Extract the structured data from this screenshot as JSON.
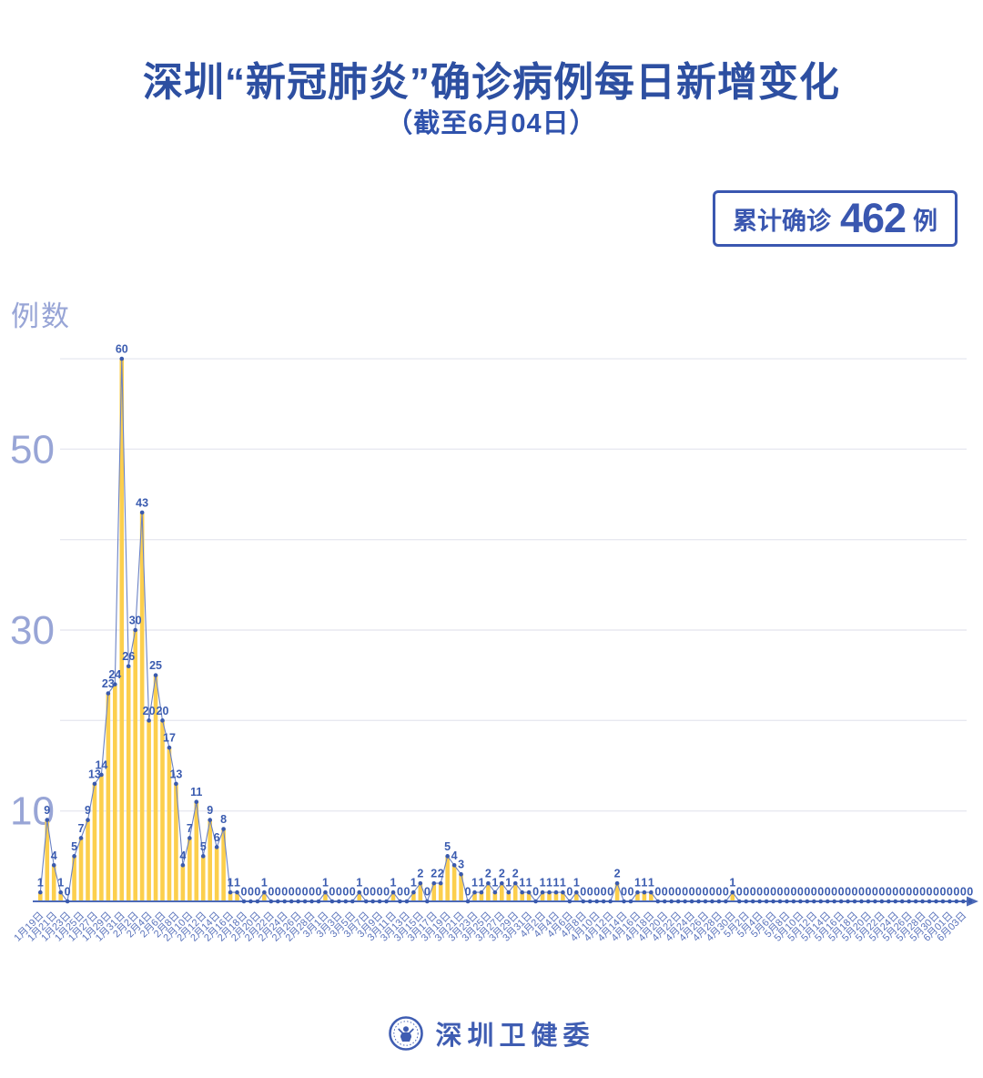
{
  "header": {
    "title": "深圳“新冠肺炎”确诊病例每日新增变化",
    "subtitle": "（截至6月04日）"
  },
  "badge": {
    "prefix": "累计确诊",
    "number": "462",
    "suffix": "例"
  },
  "footer": {
    "logo_text": "深圳卫健委"
  },
  "colors": {
    "title_blue": "#2d4fa1",
    "badge_blue": "#3a57b0",
    "axis_label_light": "#98a5d6",
    "x_label_blue": "#5b74bc",
    "value_label_blue": "#3b5cb0",
    "line_blue": "#6b82c4",
    "dot_blue": "#3a5aad",
    "bar_yellow": "#fccf4d",
    "gridline": "#e8e9f0",
    "axis_line": "#4c6ab8"
  },
  "chart_data": {
    "type": "bar",
    "title": "深圳“新冠肺炎”确诊病例每日新增变化",
    "subtitle": "（截至6月04日）",
    "xlabel": "",
    "ylabel": "例数",
    "ylim": [
      0,
      60
    ],
    "grid": true,
    "gridline_values": [
      10,
      20,
      30,
      40,
      50,
      60
    ],
    "y_ticks_labeled": [
      50,
      30,
      10
    ],
    "start_date": "1月19日",
    "end_date": "6月04日",
    "total_confirmed": 462,
    "values": [
      1,
      9,
      4,
      1,
      0,
      5,
      7,
      9,
      13,
      14,
      23,
      24,
      60,
      26,
      30,
      43,
      20,
      25,
      20,
      17,
      13,
      4,
      7,
      11,
      5,
      9,
      6,
      8,
      1,
      1,
      0,
      0,
      0,
      1,
      0,
      0,
      0,
      0,
      0,
      0,
      0,
      0,
      1,
      0,
      0,
      0,
      0,
      1,
      0,
      0,
      0,
      0,
      1,
      0,
      0,
      1,
      2,
      0,
      2,
      2,
      5,
      4,
      3,
      0,
      1,
      1,
      2,
      1,
      2,
      1,
      2,
      1,
      1,
      0,
      1,
      1,
      1,
      1,
      0,
      1,
      0,
      0,
      0,
      0,
      0,
      2,
      0,
      0,
      1,
      1,
      1,
      0,
      0,
      0,
      0,
      0,
      0,
      0,
      0,
      0,
      0,
      0,
      1,
      0,
      0,
      0,
      0,
      0,
      0,
      0,
      0,
      0,
      0,
      0,
      0,
      0,
      0,
      0,
      0,
      0,
      0,
      0,
      0,
      0,
      0,
      0,
      0,
      0,
      0,
      0,
      0,
      0,
      0,
      0,
      0,
      0,
      0,
      0
    ],
    "x_tick_labels": [
      "1月19日",
      "1月21日",
      "1月23日",
      "1月25日",
      "1月27日",
      "1月29日",
      "1月31日",
      "2月2日",
      "2月4日",
      "2月6日",
      "2月8日",
      "2月10日",
      "2月12日",
      "2月14日",
      "2月16日",
      "2月18日",
      "2月20日",
      "2月22日",
      "2月24日",
      "2月26日",
      "2月28日",
      "3月1日",
      "3月3日",
      "3月5日",
      "3月7日",
      "3月9日",
      "3月11日",
      "3月13日",
      "3月15日",
      "3月17日",
      "3月19日",
      "3月21日",
      "3月23日",
      "3月25日",
      "3月27日",
      "3月29日",
      "3月31日",
      "4月2日",
      "4月4日",
      "4月6日",
      "4月8日",
      "4月10日",
      "4月12日",
      "4月14日",
      "4月16日",
      "4月18日",
      "4月20日",
      "4月22日",
      "4月24日",
      "4月26日",
      "4月28日",
      "4月30日",
      "5月2日",
      "5月4日",
      "5月6日",
      "5月8日",
      "5月10日",
      "5月12日",
      "5月14日",
      "5月16日",
      "5月18日",
      "5月20日",
      "5月22日",
      "5月24日",
      "5月26日",
      "5月28日",
      "5月30日",
      "6月01日",
      "6月03日"
    ],
    "x_tick_every_n_points": 2
  }
}
